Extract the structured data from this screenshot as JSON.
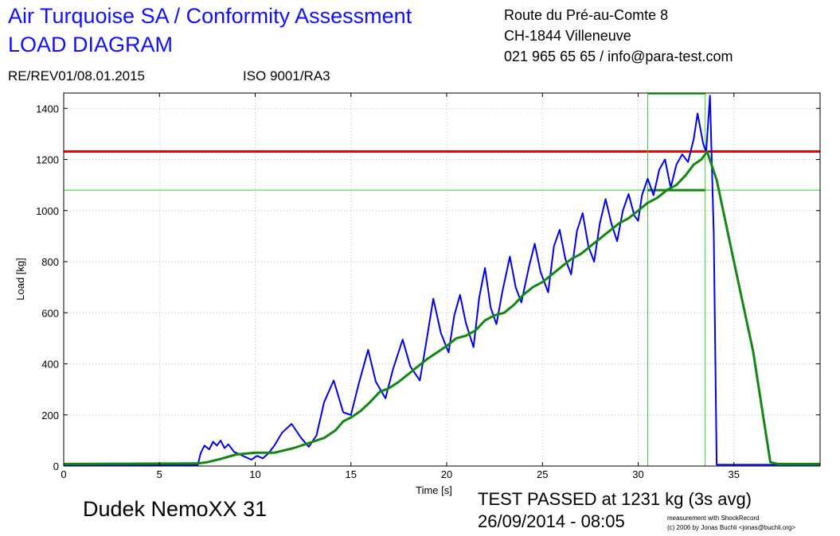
{
  "header": {
    "title_line1": "Air Turquoise SA / Conformity Assessment",
    "title_line2": "LOAD DIAGRAM",
    "address_line1": "Route du Pré-au-Comte 8",
    "address_line2": "CH-1844 Villeneuve",
    "address_line3": "021 965 65 65 / info@para-test.com",
    "revision": "RE/REV01/08.01.2015",
    "iso": "ISO 9001/RA3"
  },
  "footer": {
    "model": "Dudek NemoXX 31",
    "result": "TEST PASSED at 1231 kg (3s avg)",
    "datetime": "26/09/2014 - 08:05",
    "credit_line1": "measurement with ShockRecord",
    "credit_line2": "(c) 2006 by Jonas Buchli <jonas@buchli.org>"
  },
  "colors": {
    "raw": "#0000ee",
    "avg": "#118811",
    "limit": "#ee0000",
    "marker": "#33cc33",
    "grid": "#b8b8b8"
  },
  "chart_data": {
    "type": "line",
    "xlabel": "Time [s]",
    "ylabel": "Load [kg]",
    "xlim": [
      0,
      39.5
    ],
    "ylim": [
      0,
      1460
    ],
    "xticks": [
      0,
      5,
      10,
      15,
      20,
      25,
      30,
      35
    ],
    "yticks": [
      0,
      200,
      400,
      600,
      800,
      1000,
      1200,
      1400
    ],
    "grid": true,
    "reference_lines": [
      {
        "orientation": "horizontal",
        "value": 1231,
        "color": "red"
      },
      {
        "orientation": "horizontal",
        "value": 1080,
        "color": "light-green"
      },
      {
        "orientation": "vertical",
        "value": 30.5,
        "color": "light-green"
      },
      {
        "orientation": "vertical",
        "value": 33.5,
        "color": "light-green"
      }
    ],
    "series": [
      {
        "x": [
          0,
          3,
          7.0,
          7.15,
          7.35,
          7.6,
          7.8,
          8.0,
          8.2,
          8.4,
          8.6,
          8.9,
          9.2,
          9.5,
          9.8,
          10.1,
          10.4,
          10.7,
          11.0,
          11.4,
          11.9,
          12.4,
          12.8,
          13.2,
          13.6,
          14.1,
          14.6,
          15.0,
          15.4,
          15.9,
          16.3,
          16.8,
          17.2,
          17.7,
          18.1,
          18.6,
          18.9,
          19.3,
          19.7,
          20.1,
          20.4,
          20.7,
          21.0,
          21.4,
          21.7,
          22.0,
          22.3,
          22.6,
          22.9,
          23.3,
          23.6,
          23.9,
          24.3,
          24.6,
          24.9,
          25.3,
          25.6,
          25.9,
          26.2,
          26.5,
          26.8,
          27.1,
          27.4,
          27.7,
          28.0,
          28.3,
          28.6,
          28.9,
          29.2,
          29.5,
          29.8,
          30.0,
          30.2,
          30.5,
          30.8,
          31.1,
          31.4,
          31.7,
          32.0,
          32.3,
          32.6,
          32.9,
          33.1,
          33.4,
          33.55,
          33.75,
          33.95,
          34.1,
          37,
          39.5
        ],
        "values": [
          3,
          4,
          4,
          50,
          80,
          65,
          95,
          80,
          100,
          70,
          85,
          55,
          45,
          35,
          25,
          40,
          30,
          50,
          80,
          130,
          165,
          110,
          75,
          120,
          250,
          335,
          210,
          200,
          320,
          455,
          330,
          265,
          380,
          495,
          390,
          335,
          470,
          655,
          520,
          445,
          590,
          670,
          560,
          465,
          660,
          775,
          620,
          555,
          680,
          820,
          700,
          640,
          780,
          870,
          760,
          680,
          860,
          925,
          810,
          750,
          920,
          990,
          860,
          800,
          950,
          1045,
          950,
          880,
          1000,
          1065,
          980,
          960,
          1060,
          1125,
          1060,
          1160,
          1200,
          1090,
          1180,
          1220,
          1190,
          1280,
          1380,
          1260,
          1230,
          1450,
          900,
          5,
          5,
          5
        ]
      },
      {
        "x": [
          0,
          7.0,
          7.5,
          8.3,
          9.0,
          10.0,
          11.0,
          12.0,
          13.0,
          13.6,
          14.2,
          14.6,
          15.0,
          15.5,
          16.0,
          16.5,
          17.0,
          17.5,
          18.0,
          18.5,
          19.0,
          19.5,
          20.0,
          20.5,
          21.0,
          21.5,
          22.0,
          22.5,
          23.0,
          23.5,
          24.0,
          24.5,
          25.0,
          25.5,
          26.0,
          26.5,
          27.0,
          27.5,
          28.0,
          28.5,
          29.0,
          29.5,
          30.0,
          30.5,
          31.0,
          31.5,
          32.0,
          32.5,
          32.9,
          33.3,
          33.6,
          34.1,
          35.0,
          36.0,
          36.9,
          37.3,
          39.5
        ],
        "values": [
          8,
          10,
          15,
          30,
          45,
          52,
          52,
          70,
          95,
          110,
          140,
          175,
          190,
          215,
          250,
          290,
          305,
          330,
          360,
          390,
          420,
          445,
          470,
          500,
          510,
          530,
          570,
          590,
          600,
          630,
          670,
          700,
          720,
          750,
          780,
          810,
          830,
          860,
          890,
          920,
          950,
          970,
          1000,
          1030,
          1050,
          1080,
          1100,
          1140,
          1180,
          1200,
          1231,
          1120,
          800,
          450,
          15,
          8,
          8
        ]
      }
    ]
  }
}
